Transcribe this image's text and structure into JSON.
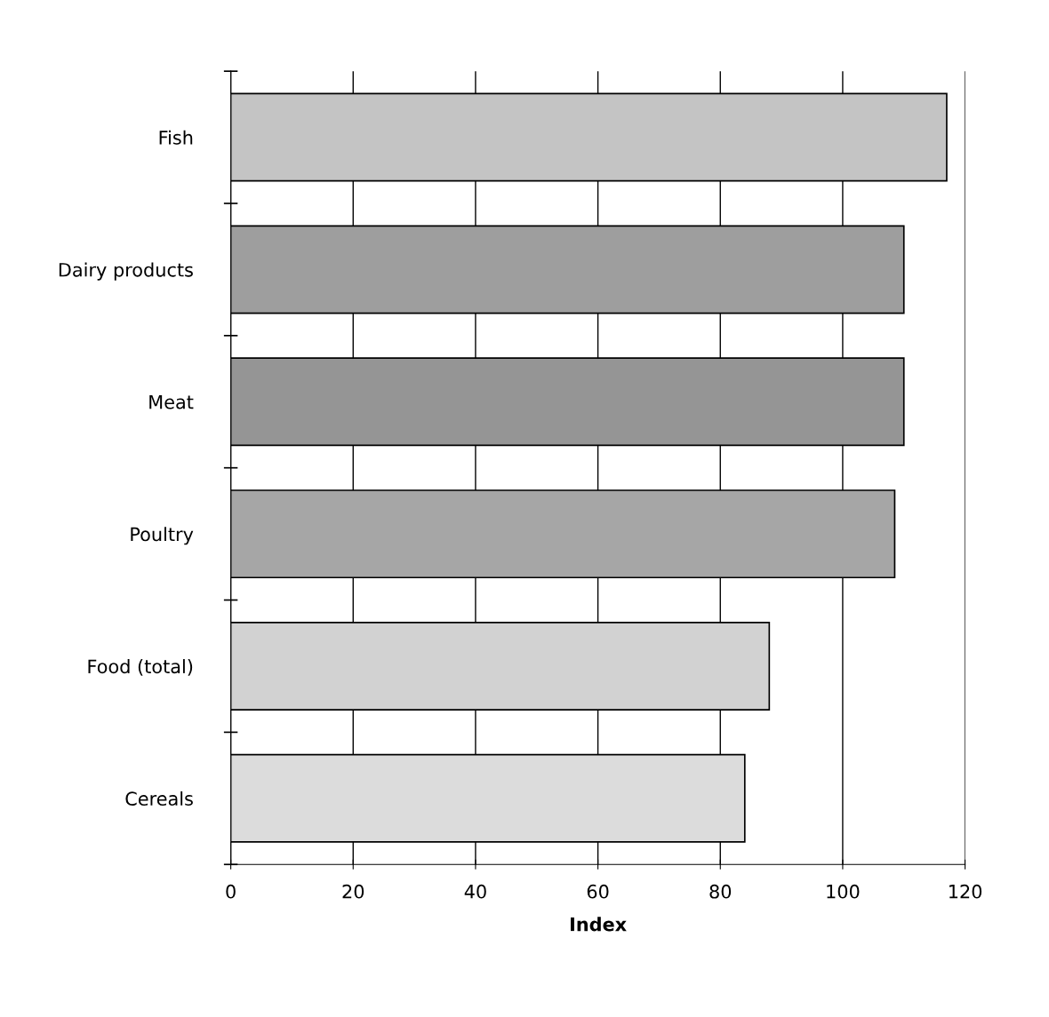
{
  "chart_data": {
    "type": "bar",
    "orientation": "horizontal",
    "xlabel": "Index",
    "categories": [
      "Fish",
      "Dairy products",
      "Meat",
      "Poultry",
      "Food (total)",
      "Cereals"
    ],
    "values": [
      117,
      110,
      110,
      108.5,
      88,
      84
    ],
    "colors": [
      "#c4c4c4",
      "#9e9e9e",
      "#959595",
      "#a6a6a6",
      "#d2d2d2",
      "#dcdcdc"
    ],
    "xlim": [
      0,
      120
    ],
    "xticks": [
      0,
      20,
      40,
      60,
      80,
      100,
      120
    ],
    "grid": "x"
  }
}
